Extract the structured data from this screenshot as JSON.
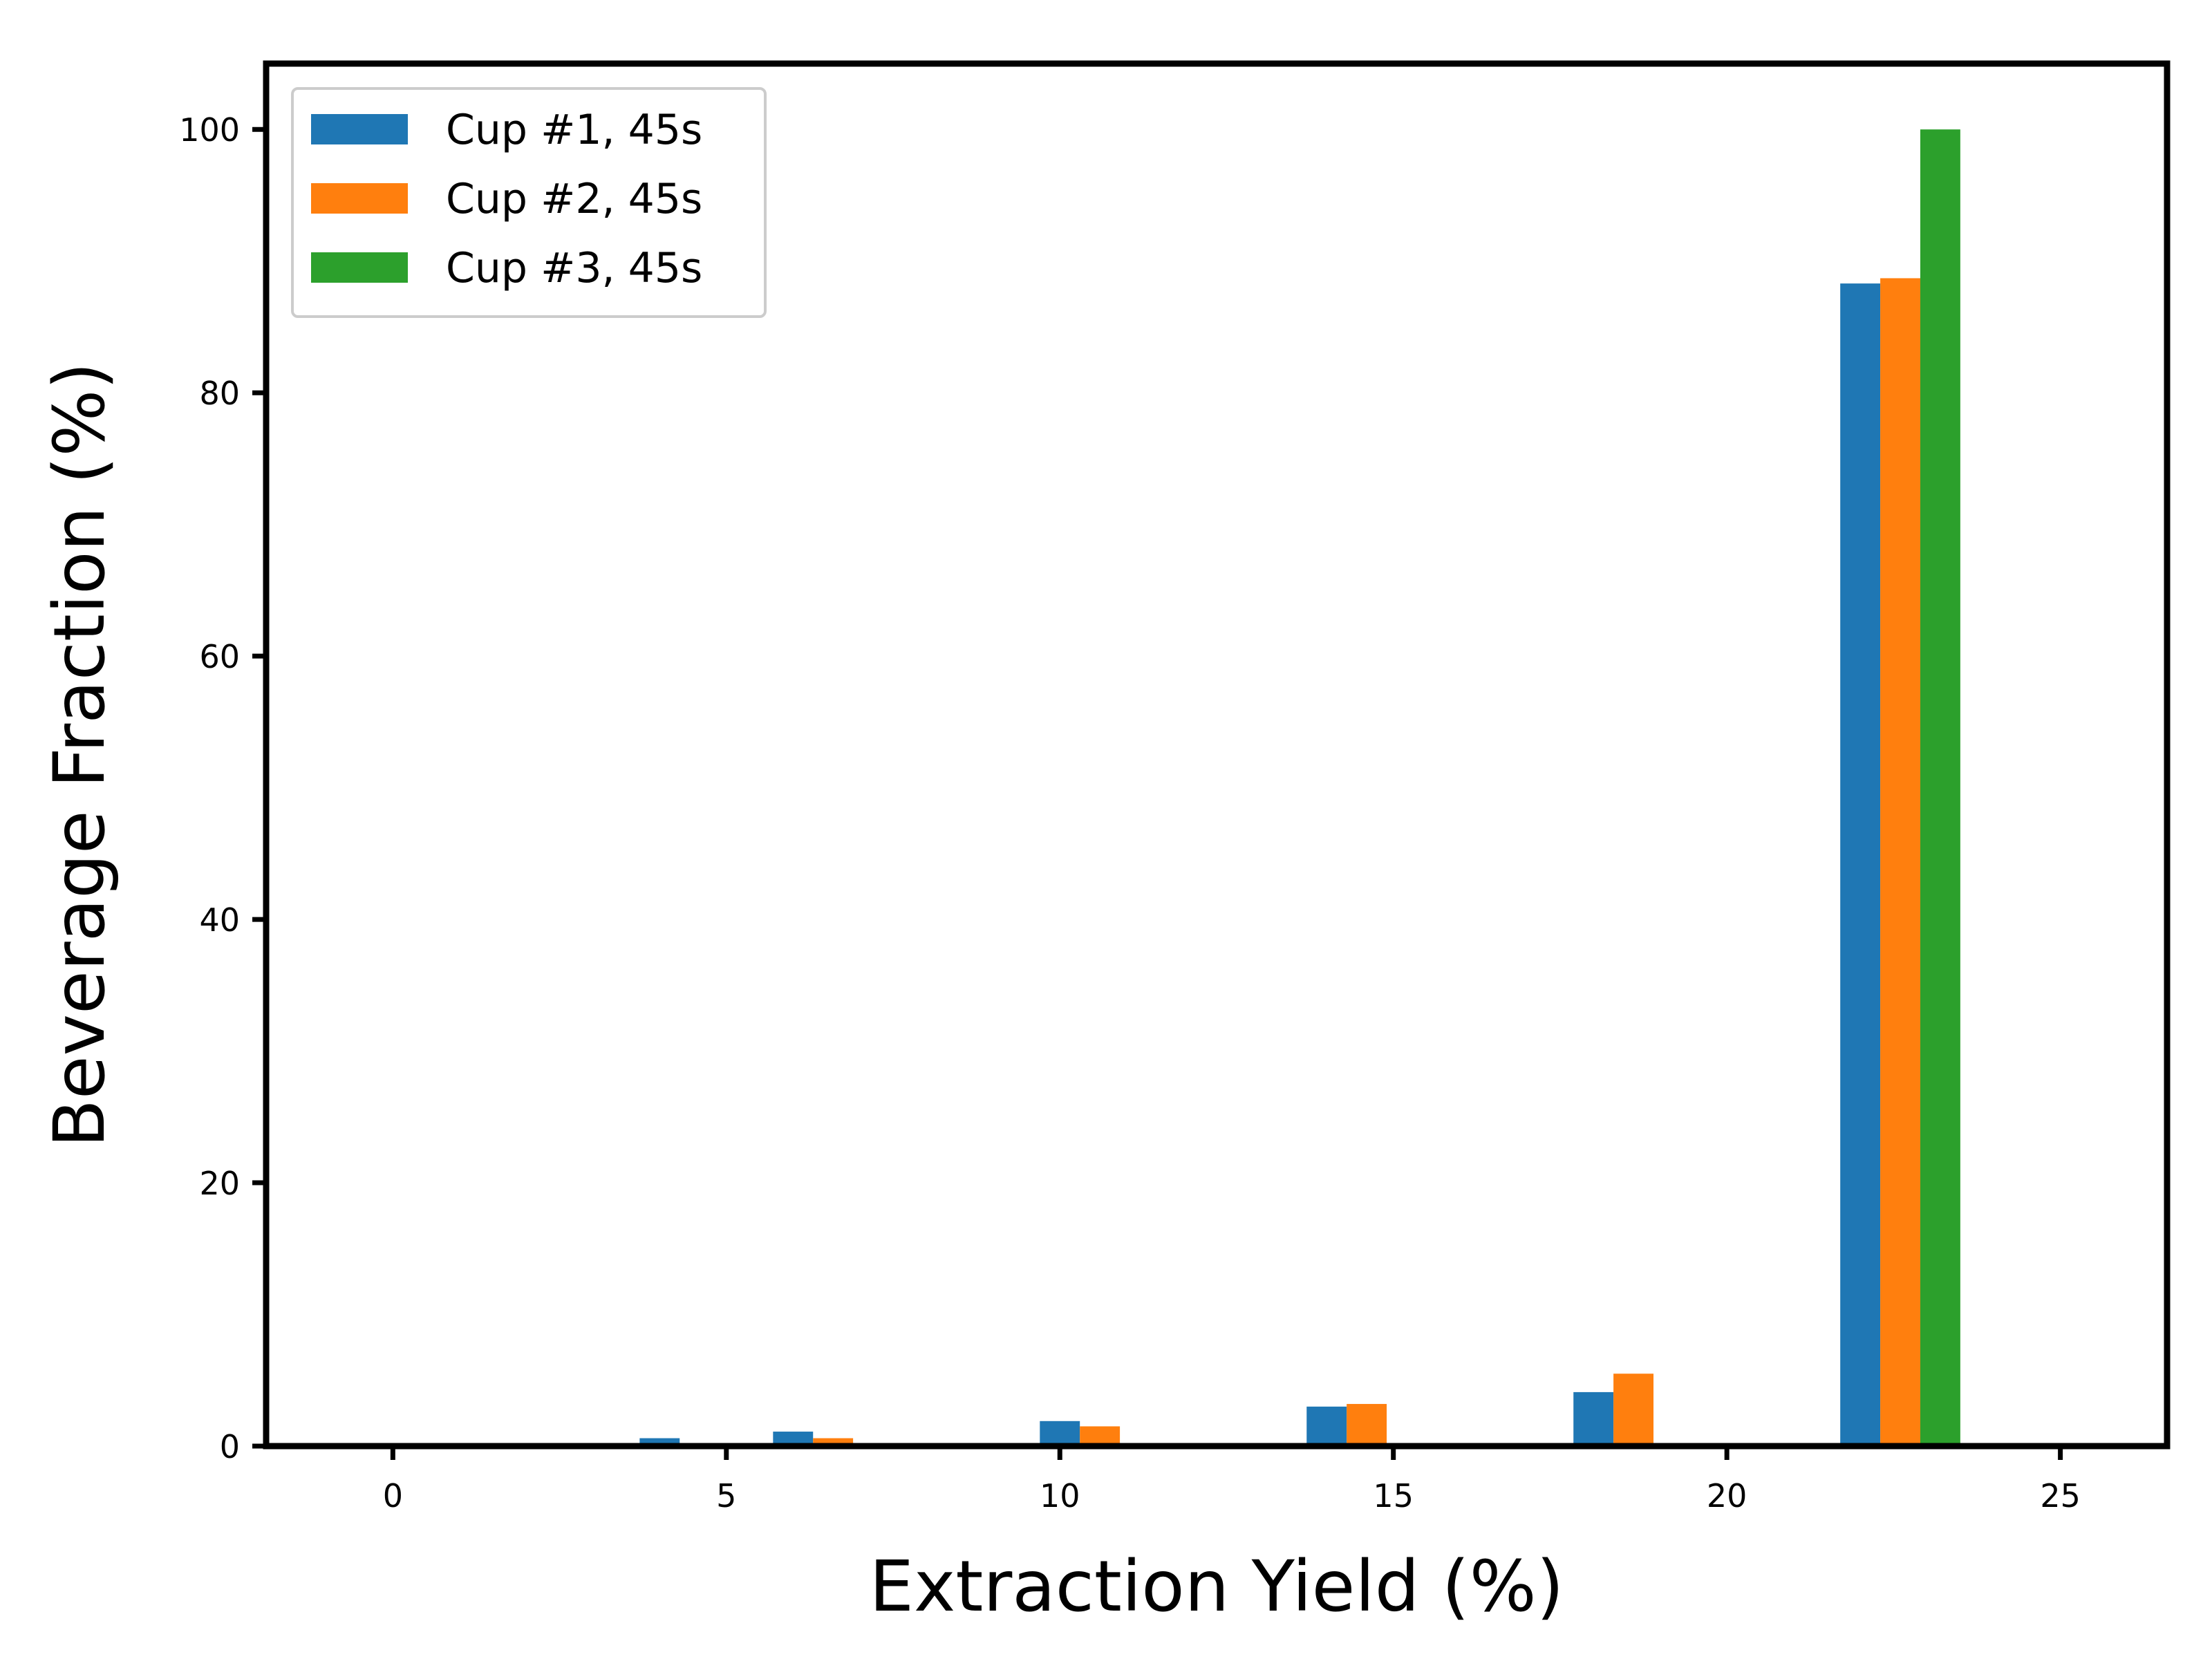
{
  "chart_data": {
    "type": "bar",
    "title": "",
    "xlabel": "Extraction Yield (%)",
    "ylabel": "Beverage Fraction (%)",
    "xlim": [
      -1.9,
      26.6
    ],
    "ylim": [
      0,
      105
    ],
    "xticks": [
      0,
      5,
      10,
      15,
      20,
      25
    ],
    "yticks": [
      0,
      20,
      40,
      60,
      80,
      100
    ],
    "bar_width": 0.6,
    "grid": false,
    "legend_position": "top-left",
    "series": [
      {
        "name": "Cup #1, 45s",
        "color": "#1f77b4",
        "x": [
          0.0,
          4.0,
          6.0,
          10.0,
          14.0,
          18.0,
          22.0
        ],
        "values": [
          0.2,
          0.6,
          1.1,
          1.9,
          3.0,
          4.1,
          88.3
        ]
      },
      {
        "name": "Cup #2, 45s",
        "color": "#ff7f0e",
        "x": [
          6.6,
          10.6,
          14.6,
          18.6,
          22.6
        ],
        "values": [
          0.6,
          1.5,
          3.2,
          5.5,
          88.7
        ]
      },
      {
        "name": "Cup #3, 45s",
        "color": "#2ca02c",
        "x": [
          23.2
        ],
        "values": [
          100.0
        ]
      }
    ]
  }
}
